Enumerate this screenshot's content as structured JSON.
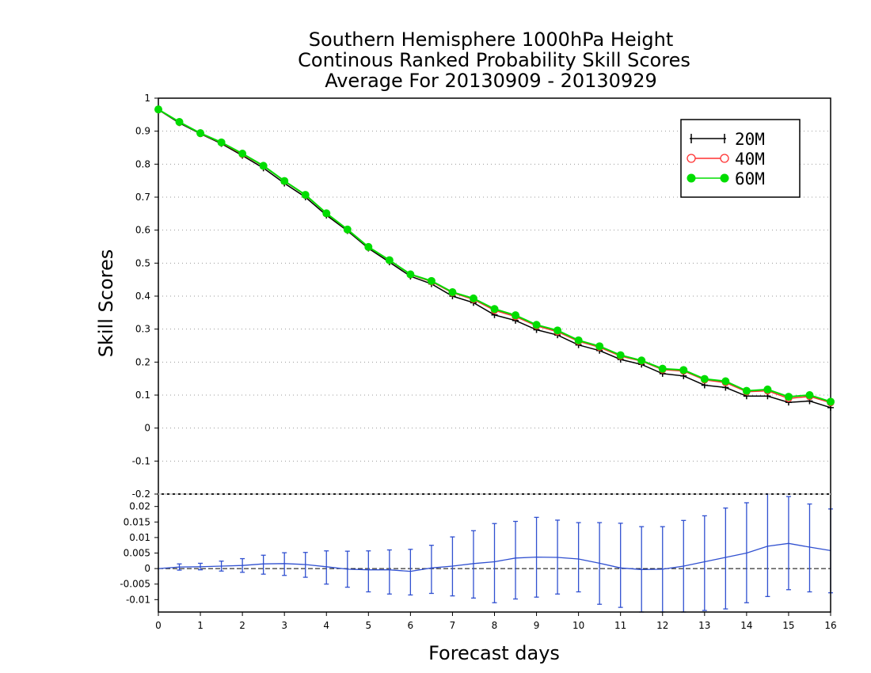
{
  "title_lines": [
    "Southern Hemisphere 1000hPa Height",
    "Continous Ranked Probability Skill Scores",
    "Average For 20130909 - 20130929"
  ],
  "colors": {
    "series_20M": "#000000",
    "series_40M": "#ff3030",
    "series_60M": "#00dd00",
    "difference": "#3050d0",
    "grid": "#999999"
  },
  "chart_data": [
    {
      "type": "line",
      "xlabel": "Forecast days",
      "ylabel": "Skill Scores",
      "xlim": [
        0,
        16
      ],
      "ylim": [
        -0.2,
        1
      ],
      "yticks": [
        1,
        0.9,
        0.8,
        0.7,
        0.6,
        0.5,
        0.4,
        0.3,
        0.2,
        0.1,
        0,
        -0.1,
        -0.2
      ],
      "ytick_labels": [
        "1",
        "0.9",
        "0.8",
        "0.7",
        "0.6",
        "0.5",
        "0.4",
        "0.3",
        "0.2",
        "0.1",
        "0",
        "-0.1",
        "-0.2"
      ],
      "grid": true,
      "legend_position": "top-right",
      "x": [
        0,
        0.5,
        1,
        1.5,
        2,
        2.5,
        3,
        3.5,
        4,
        4.5,
        5,
        5.5,
        6,
        6.5,
        7,
        7.5,
        8,
        8.5,
        9,
        9.5,
        10,
        10.5,
        11,
        11.5,
        12,
        12.5,
        13,
        13.5,
        14,
        14.5,
        15,
        15.5,
        16
      ],
      "series": [
        {
          "name": "20M",
          "marker": "plus",
          "values": [
            0.965,
            0.925,
            0.892,
            0.862,
            0.826,
            0.788,
            0.742,
            0.7,
            0.645,
            0.598,
            0.545,
            0.503,
            0.46,
            0.437,
            0.4,
            0.38,
            0.343,
            0.326,
            0.298,
            0.282,
            0.252,
            0.235,
            0.208,
            0.193,
            0.165,
            0.158,
            0.13,
            0.123,
            0.097,
            0.097,
            0.078,
            0.082,
            0.062
          ]
        },
        {
          "name": "40M",
          "marker": "circle-open",
          "values": [
            0.965,
            0.927,
            0.893,
            0.865,
            0.83,
            0.794,
            0.748,
            0.706,
            0.65,
            0.601,
            0.548,
            0.508,
            0.465,
            0.444,
            0.41,
            0.39,
            0.357,
            0.338,
            0.31,
            0.292,
            0.263,
            0.245,
            0.218,
            0.203,
            0.177,
            0.173,
            0.146,
            0.138,
            0.11,
            0.113,
            0.09,
            0.096,
            0.077
          ]
        },
        {
          "name": "60M",
          "marker": "circle-filled",
          "values": [
            0.966,
            0.928,
            0.894,
            0.866,
            0.832,
            0.795,
            0.749,
            0.707,
            0.651,
            0.602,
            0.549,
            0.509,
            0.466,
            0.446,
            0.412,
            0.393,
            0.361,
            0.342,
            0.313,
            0.296,
            0.266,
            0.248,
            0.221,
            0.205,
            0.18,
            0.176,
            0.149,
            0.142,
            0.113,
            0.117,
            0.095,
            0.1,
            0.08
          ]
        }
      ]
    },
    {
      "type": "line",
      "xlim": [
        0,
        16
      ],
      "ylim": [
        -0.014,
        0.024
      ],
      "xticks": [
        0,
        1,
        2,
        3,
        4,
        5,
        6,
        7,
        8,
        9,
        10,
        11,
        12,
        13,
        14,
        15,
        16
      ],
      "xtick_labels": [
        "0",
        "1",
        "2",
        "3",
        "4",
        "5",
        "6",
        "7",
        "8",
        "9",
        "10",
        "11",
        "12",
        "13",
        "14",
        "15",
        "16"
      ],
      "yticks": [
        0.02,
        0.015,
        0.01,
        0.005,
        0,
        -0.005,
        -0.01
      ],
      "ytick_labels": [
        "0.02",
        "0.015",
        "0.01",
        "0.005",
        "0",
        "-0.005",
        "-0.01"
      ],
      "zero_line": "dashed",
      "x": [
        0,
        0.5,
        1,
        1.5,
        2,
        2.5,
        3,
        3.5,
        4,
        4.5,
        5,
        5.5,
        6,
        6.5,
        7,
        7.5,
        8,
        8.5,
        9,
        9.5,
        10,
        10.5,
        11,
        11.5,
        12,
        12.5,
        13,
        13.5,
        14,
        14.5,
        15,
        15.5,
        16
      ],
      "series": [
        {
          "values": [
            0,
            0.0005,
            0.0006,
            0.0008,
            0.001,
            0.0015,
            0.0016,
            0.0013,
            0.0006,
            -0.0002,
            -0.0004,
            -0.0004,
            -0.0009,
            0.0002,
            0.0008,
            0.0016,
            0.0022,
            0.0034,
            0.0037,
            0.0036,
            0.0031,
            0.0017,
            0.0002,
            -0.0003,
            -0.0002,
            0.0008,
            0.0022,
            0.0036,
            0.005,
            0.0072,
            0.0081,
            0.0069,
            0.0058
          ],
          "error_low": [
            0,
            -0.0005,
            -0.0004,
            -0.0008,
            -0.0012,
            -0.0018,
            -0.0022,
            -0.0028,
            -0.005,
            -0.006,
            -0.0075,
            -0.0082,
            -0.0085,
            -0.008,
            -0.0088,
            -0.0095,
            -0.011,
            -0.0098,
            -0.0092,
            -0.0082,
            -0.0075,
            -0.0115,
            -0.0125,
            -0.014,
            -0.014,
            -0.014,
            -0.0135,
            -0.013,
            -0.011,
            -0.009,
            -0.0068,
            -0.0075,
            -0.0078
          ],
          "error_high": [
            0,
            0.0015,
            0.0017,
            0.0024,
            0.0032,
            0.0043,
            0.0051,
            0.0052,
            0.0057,
            0.0056,
            0.0057,
            0.006,
            0.0062,
            0.0075,
            0.0102,
            0.0122,
            0.0145,
            0.0152,
            0.0165,
            0.0156,
            0.0148,
            0.0148,
            0.0146,
            0.0135,
            0.0135,
            0.0155,
            0.017,
            0.0195,
            0.0212,
            0.024,
            0.0232,
            0.0208,
            0.0192
          ]
        }
      ]
    }
  ]
}
